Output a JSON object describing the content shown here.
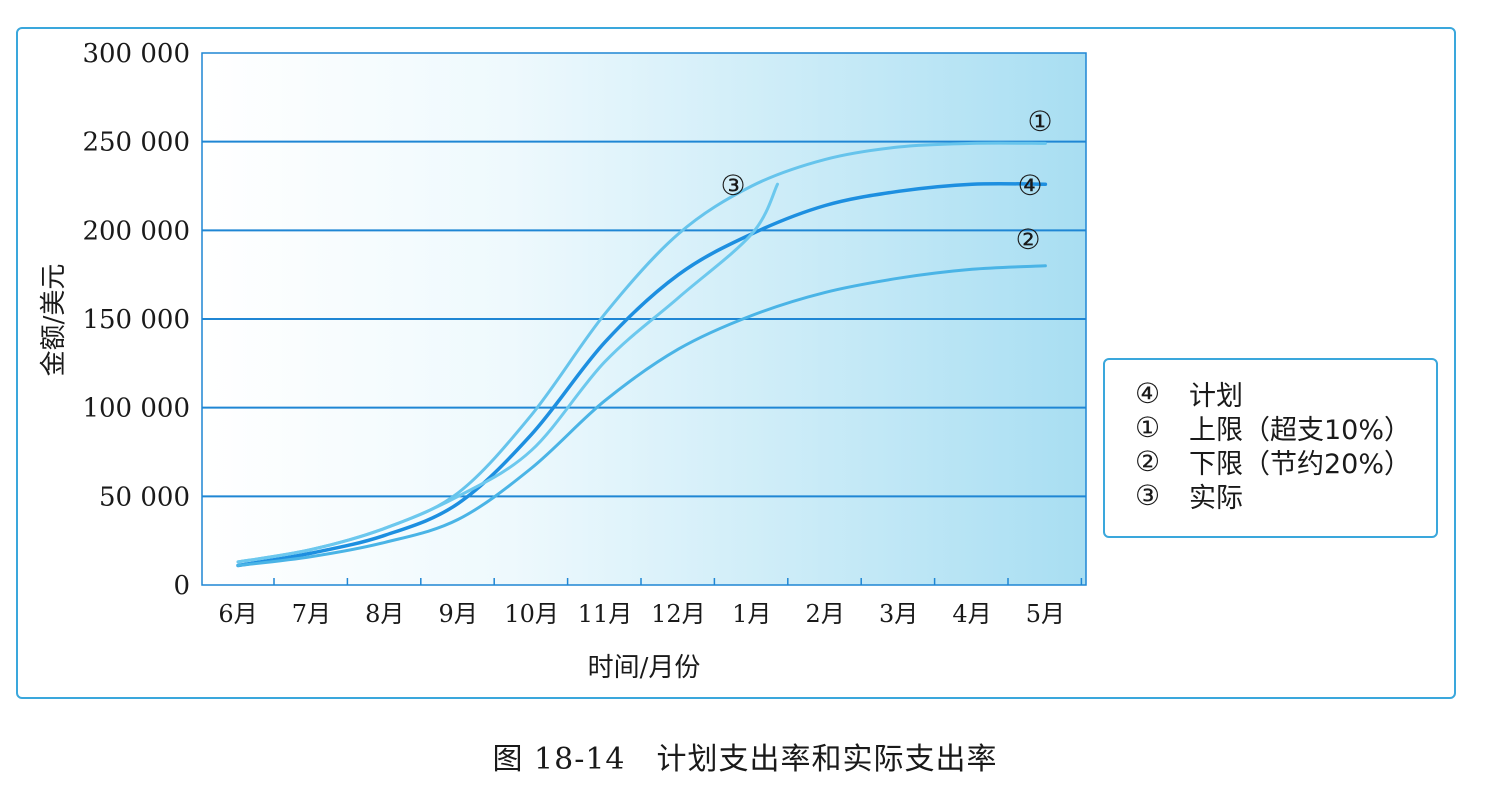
{
  "caption": "图 18-14　计划支出率和实际支出率",
  "colors": {
    "frame": "#3aa7dc",
    "gridline": "#1f86d4",
    "plan_line": "#1d8fe0",
    "upper_line": "#66c4ec",
    "lower_line": "#4ab4e6",
    "actual_line": "#6cc8ee"
  },
  "chart_data": {
    "type": "line",
    "xlabel": "时间/月份",
    "ylabel": "金额/美元",
    "categories": [
      "6月",
      "7月",
      "8月",
      "9月",
      "10月",
      "11月",
      "12月",
      "1月",
      "2月",
      "3月",
      "4月",
      "5月"
    ],
    "y_ticks": [
      "0",
      "50 000",
      "100 000",
      "150 000",
      "200 000",
      "250 000",
      "300 000"
    ],
    "ylim": [
      0,
      300000
    ],
    "grid": "horizontal",
    "legend_position": "right",
    "series": [
      {
        "name": "计划",
        "tag": "④",
        "color": "#1d8fe0",
        "points": [
          [
            0,
            11000
          ],
          [
            1,
            18000
          ],
          [
            2,
            28000
          ],
          [
            3,
            46000
          ],
          [
            4,
            85000
          ],
          [
            5,
            137000
          ],
          [
            6,
            175000
          ],
          [
            7,
            198000
          ],
          [
            8,
            214000
          ],
          [
            9,
            222000
          ],
          [
            10,
            226000
          ],
          [
            11,
            226000
          ]
        ]
      },
      {
        "name": "上限（超支10%）",
        "tag": "①",
        "color": "#66c4ec",
        "points": [
          [
            0,
            13000
          ],
          [
            1,
            20000
          ],
          [
            2,
            32000
          ],
          [
            3,
            52000
          ],
          [
            4,
            96000
          ],
          [
            5,
            153000
          ],
          [
            6,
            198000
          ],
          [
            7,
            225000
          ],
          [
            8,
            240000
          ],
          [
            9,
            247000
          ],
          [
            10,
            249000
          ],
          [
            11,
            249000
          ]
        ]
      },
      {
        "name": "下限（节约20%）",
        "tag": "②",
        "color": "#4ab4e6",
        "points": [
          [
            0,
            11000
          ],
          [
            1,
            16000
          ],
          [
            2,
            24000
          ],
          [
            3,
            37000
          ],
          [
            4,
            66000
          ],
          [
            5,
            104000
          ],
          [
            6,
            133000
          ],
          [
            7,
            152000
          ],
          [
            8,
            165000
          ],
          [
            9,
            173000
          ],
          [
            10,
            178000
          ],
          [
            11,
            180000
          ]
        ]
      },
      {
        "name": "实际",
        "tag": "③",
        "color": "#6cc8ee",
        "points": [
          [
            0,
            13000
          ],
          [
            1,
            20000
          ],
          [
            2,
            32000
          ],
          [
            3,
            50000
          ],
          [
            4,
            76000
          ],
          [
            5,
            126000
          ],
          [
            6,
            162000
          ],
          [
            7,
            198000
          ],
          [
            7.35,
            226000
          ]
        ]
      }
    ]
  }
}
